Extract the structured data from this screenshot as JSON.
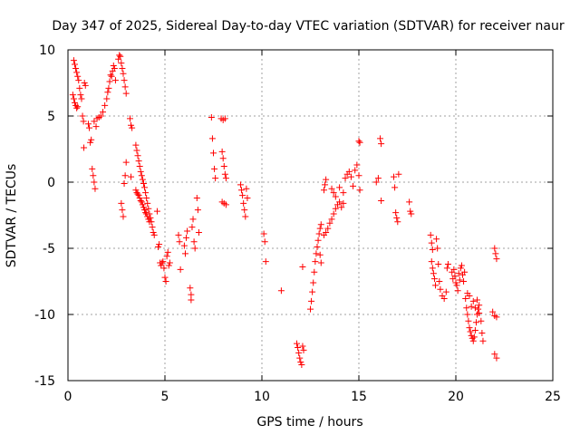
{
  "chart_data": {
    "type": "scatter",
    "title": "Day 347 of 2025, Sidereal Day-to-day VTEC variation (SDTVAR) for receiver naur",
    "xlabel": "GPS time / hours",
    "ylabel": "SDTVAR / TECUs",
    "xlim": [
      0,
      25
    ],
    "ylim": [
      -15,
      10
    ],
    "xticks": [
      "0",
      "5",
      "10",
      "15",
      "20",
      "25"
    ],
    "yticks": [
      "10",
      "5",
      "0",
      "-5",
      "-10",
      "-15"
    ],
    "xtick_values": [
      0,
      5,
      10,
      15,
      20,
      25
    ],
    "ytick_values": [
      10,
      5,
      0,
      -5,
      -10,
      -15
    ],
    "grid": true,
    "marker": "+",
    "color": "#ff0000",
    "series": [
      {
        "name": "SDTVAR",
        "points": [
          [
            0.3,
            9.2
          ],
          [
            0.35,
            8.9
          ],
          [
            0.4,
            8.6
          ],
          [
            0.45,
            8.3
          ],
          [
            0.5,
            8.0
          ],
          [
            0.55,
            7.7
          ],
          [
            0.25,
            6.6
          ],
          [
            0.3,
            6.3
          ],
          [
            0.35,
            6.0
          ],
          [
            0.4,
            5.8
          ],
          [
            0.45,
            5.6
          ],
          [
            0.5,
            5.7
          ],
          [
            0.6,
            7.1
          ],
          [
            0.65,
            6.6
          ],
          [
            0.7,
            6.3
          ],
          [
            0.75,
            5.0
          ],
          [
            0.8,
            4.6
          ],
          [
            0.82,
            2.6
          ],
          [
            0.85,
            7.5
          ],
          [
            0.9,
            7.3
          ],
          [
            1.05,
            4.4
          ],
          [
            1.1,
            4.1
          ],
          [
            1.15,
            3.0
          ],
          [
            1.2,
            3.2
          ],
          [
            1.25,
            1.0
          ],
          [
            1.3,
            0.5
          ],
          [
            1.35,
            0.0
          ],
          [
            1.4,
            -0.5
          ],
          [
            1.35,
            4.6
          ],
          [
            1.45,
            4.2
          ],
          [
            1.5,
            4.8
          ],
          [
            1.6,
            4.9
          ],
          [
            1.7,
            5.0
          ],
          [
            1.8,
            5.3
          ],
          [
            1.9,
            5.8
          ],
          [
            2.0,
            6.3
          ],
          [
            2.05,
            6.8
          ],
          [
            2.1,
            7.1
          ],
          [
            2.15,
            7.6
          ],
          [
            2.2,
            8.1
          ],
          [
            2.25,
            8.0
          ],
          [
            2.3,
            8.4
          ],
          [
            2.35,
            8.8
          ],
          [
            2.4,
            8.6
          ],
          [
            2.45,
            7.7
          ],
          [
            2.6,
            9.3
          ],
          [
            2.65,
            9.6
          ],
          [
            2.7,
            9.5
          ],
          [
            2.75,
            9.0
          ],
          [
            2.8,
            8.6
          ],
          [
            2.85,
            8.2
          ],
          [
            2.9,
            7.7
          ],
          [
            2.95,
            7.2
          ],
          [
            3.0,
            6.7
          ],
          [
            2.75,
            -1.6
          ],
          [
            2.8,
            -2.1
          ],
          [
            2.85,
            -2.6
          ],
          [
            2.9,
            -0.1
          ],
          [
            2.95,
            0.5
          ],
          [
            3.0,
            1.5
          ],
          [
            3.2,
            4.8
          ],
          [
            3.25,
            4.3
          ],
          [
            3.3,
            4.1
          ],
          [
            3.25,
            0.4
          ],
          [
            3.5,
            2.8
          ],
          [
            3.55,
            2.4
          ],
          [
            3.6,
            2.0
          ],
          [
            3.65,
            1.6
          ],
          [
            3.7,
            1.2
          ],
          [
            3.75,
            0.8
          ],
          [
            3.8,
            0.5
          ],
          [
            3.85,
            0.2
          ],
          [
            3.9,
            -0.1
          ],
          [
            3.95,
            -0.4
          ],
          [
            4.0,
            -0.8
          ],
          [
            4.05,
            -1.2
          ],
          [
            4.1,
            -1.6
          ],
          [
            4.15,
            -2.0
          ],
          [
            4.2,
            -2.4
          ],
          [
            4.25,
            -2.7
          ],
          [
            4.3,
            -3.0
          ],
          [
            4.35,
            -3.4
          ],
          [
            4.4,
            -3.8
          ],
          [
            4.45,
            -4.0
          ],
          [
            3.5,
            -0.6
          ],
          [
            3.55,
            -0.8
          ],
          [
            3.6,
            -0.9
          ],
          [
            3.65,
            -1.0
          ],
          [
            3.7,
            -1.2
          ],
          [
            3.75,
            -1.4
          ],
          [
            3.8,
            -1.5
          ],
          [
            3.85,
            -1.7
          ],
          [
            3.9,
            -1.9
          ],
          [
            3.95,
            -2.1
          ],
          [
            4.0,
            -2.3
          ],
          [
            4.05,
            -2.4
          ],
          [
            4.1,
            -2.6
          ],
          [
            4.15,
            -2.8
          ],
          [
            4.2,
            -3.0
          ],
          [
            4.6,
            -2.2
          ],
          [
            4.65,
            -4.9
          ],
          [
            4.7,
            -4.7
          ],
          [
            4.75,
            -6.1
          ],
          [
            4.8,
            -6.3
          ],
          [
            4.85,
            -6.1
          ],
          [
            4.9,
            -6.0
          ],
          [
            4.95,
            -6.5
          ],
          [
            5.0,
            -7.2
          ],
          [
            5.05,
            -7.5
          ],
          [
            5.1,
            -5.6
          ],
          [
            5.15,
            -5.3
          ],
          [
            5.2,
            -6.3
          ],
          [
            5.25,
            -6.1
          ],
          [
            5.7,
            -4.0
          ],
          [
            5.75,
            -4.5
          ],
          [
            5.8,
            -6.6
          ],
          [
            6.0,
            -4.8
          ],
          [
            6.05,
            -5.4
          ],
          [
            6.1,
            -4.2
          ],
          [
            6.15,
            -3.7
          ],
          [
            6.3,
            -8.0
          ],
          [
            6.35,
            -8.5
          ],
          [
            6.35,
            -8.9
          ],
          [
            6.4,
            -3.4
          ],
          [
            6.45,
            -2.8
          ],
          [
            6.5,
            -4.5
          ],
          [
            6.55,
            -5.0
          ],
          [
            6.65,
            -1.2
          ],
          [
            6.7,
            -2.1
          ],
          [
            6.75,
            -3.8
          ],
          [
            7.4,
            4.9
          ],
          [
            7.45,
            3.3
          ],
          [
            7.5,
            2.2
          ],
          [
            7.55,
            1.0
          ],
          [
            7.6,
            0.3
          ],
          [
            7.9,
            4.8
          ],
          [
            8.0,
            4.7
          ],
          [
            8.1,
            4.8
          ],
          [
            7.95,
            2.3
          ],
          [
            8.0,
            1.8
          ],
          [
            8.05,
            1.2
          ],
          [
            8.1,
            0.6
          ],
          [
            8.15,
            0.3
          ],
          [
            7.95,
            -1.5
          ],
          [
            8.05,
            -1.6
          ],
          [
            8.15,
            -1.7
          ],
          [
            8.9,
            -0.2
          ],
          [
            8.95,
            -0.6
          ],
          [
            9.0,
            -1.0
          ],
          [
            9.05,
            -1.6
          ],
          [
            9.1,
            -2.1
          ],
          [
            9.15,
            -2.6
          ],
          [
            9.2,
            -0.5
          ],
          [
            9.25,
            -1.2
          ],
          [
            10.1,
            -3.9
          ],
          [
            10.15,
            -4.5
          ],
          [
            10.2,
            -6.0
          ],
          [
            11.0,
            -8.2
          ],
          [
            11.8,
            -12.2
          ],
          [
            11.85,
            -12.5
          ],
          [
            11.9,
            -12.9
          ],
          [
            11.95,
            -13.3
          ],
          [
            12.0,
            -13.6
          ],
          [
            12.05,
            -13.8
          ],
          [
            12.1,
            -12.4
          ],
          [
            12.15,
            -12.7
          ],
          [
            12.1,
            -6.4
          ],
          [
            12.5,
            -9.6
          ],
          [
            12.55,
            -9.0
          ],
          [
            12.6,
            -8.3
          ],
          [
            12.65,
            -7.6
          ],
          [
            12.7,
            -6.8
          ],
          [
            12.75,
            -6.0
          ],
          [
            12.8,
            -5.4
          ],
          [
            12.85,
            -4.9
          ],
          [
            12.9,
            -4.4
          ],
          [
            12.95,
            -3.9
          ],
          [
            13.0,
            -3.5
          ],
          [
            13.05,
            -3.2
          ],
          [
            13.0,
            -5.5
          ],
          [
            13.05,
            -6.1
          ],
          [
            13.2,
            -4.0
          ],
          [
            13.3,
            -3.8
          ],
          [
            13.4,
            -3.5
          ],
          [
            13.5,
            -3.1
          ],
          [
            13.6,
            -2.8
          ],
          [
            13.7,
            -2.4
          ],
          [
            13.8,
            -2.0
          ],
          [
            13.9,
            -1.7
          ],
          [
            14.0,
            -1.5
          ],
          [
            14.1,
            -1.9
          ],
          [
            14.2,
            -1.6
          ],
          [
            13.2,
            -0.6
          ],
          [
            13.25,
            -0.2
          ],
          [
            13.3,
            0.2
          ],
          [
            13.6,
            -0.5
          ],
          [
            13.7,
            -0.8
          ],
          [
            13.8,
            -1.1
          ],
          [
            14.0,
            -0.4
          ],
          [
            14.2,
            -0.8
          ],
          [
            14.3,
            0.3
          ],
          [
            14.4,
            0.6
          ],
          [
            14.5,
            0.8
          ],
          [
            14.6,
            0.4
          ],
          [
            14.7,
            -0.3
          ],
          [
            14.8,
            0.9
          ],
          [
            14.9,
            1.3
          ],
          [
            15.0,
            0.5
          ],
          [
            15.05,
            -0.6
          ],
          [
            15.0,
            3.1
          ],
          [
            15.05,
            3.0
          ],
          [
            15.9,
            0.0
          ],
          [
            16.0,
            0.3
          ],
          [
            16.1,
            3.3
          ],
          [
            16.15,
            2.9
          ],
          [
            16.15,
            -1.4
          ],
          [
            16.8,
            0.4
          ],
          [
            16.85,
            -0.4
          ],
          [
            16.9,
            -2.3
          ],
          [
            16.95,
            -2.7
          ],
          [
            17.0,
            -3.0
          ],
          [
            17.05,
            0.6
          ],
          [
            17.6,
            -1.5
          ],
          [
            17.65,
            -2.2
          ],
          [
            17.7,
            -2.4
          ],
          [
            18.7,
            -4.0
          ],
          [
            18.75,
            -4.6
          ],
          [
            18.8,
            -5.1
          ],
          [
            18.75,
            -6.0
          ],
          [
            18.8,
            -6.5
          ],
          [
            18.85,
            -6.9
          ],
          [
            18.9,
            -7.3
          ],
          [
            18.95,
            -7.8
          ],
          [
            19.0,
            -4.3
          ],
          [
            19.05,
            -5.0
          ],
          [
            19.1,
            -6.2
          ],
          [
            19.15,
            -7.5
          ],
          [
            19.2,
            -8.1
          ],
          [
            19.3,
            -8.6
          ],
          [
            19.4,
            -8.8
          ],
          [
            19.5,
            -8.3
          ],
          [
            19.55,
            -6.5
          ],
          [
            19.6,
            -6.2
          ],
          [
            19.8,
            -6.8
          ],
          [
            19.85,
            -7.3
          ],
          [
            19.9,
            -6.6
          ],
          [
            19.95,
            -7.1
          ],
          [
            20.0,
            -7.6
          ],
          [
            20.05,
            -7.8
          ],
          [
            20.1,
            -8.2
          ],
          [
            20.15,
            -6.9
          ],
          [
            20.2,
            -7.4
          ],
          [
            20.25,
            -6.5
          ],
          [
            20.3,
            -6.3
          ],
          [
            20.35,
            -7.0
          ],
          [
            20.4,
            -7.5
          ],
          [
            20.45,
            -6.8
          ],
          [
            20.5,
            -8.8
          ],
          [
            20.55,
            -9.5
          ],
          [
            20.6,
            -10.0
          ],
          [
            20.65,
            -10.5
          ],
          [
            20.7,
            -11.0
          ],
          [
            20.75,
            -11.3
          ],
          [
            20.8,
            -11.6
          ],
          [
            20.85,
            -11.8
          ],
          [
            20.9,
            -12.0
          ],
          [
            20.95,
            -11.7
          ],
          [
            21.0,
            -11.2
          ],
          [
            21.05,
            -10.6
          ],
          [
            21.1,
            -10.0
          ],
          [
            21.15,
            -9.6
          ],
          [
            21.2,
            -9.3
          ],
          [
            20.6,
            -8.4
          ],
          [
            20.7,
            -8.6
          ],
          [
            20.8,
            -9.4
          ],
          [
            20.9,
            -9.0
          ],
          [
            21.0,
            -9.5
          ],
          [
            21.1,
            -8.9
          ],
          [
            21.2,
            -9.9
          ],
          [
            21.3,
            -10.5
          ],
          [
            21.35,
            -11.4
          ],
          [
            21.4,
            -12.0
          ],
          [
            22.0,
            -5.0
          ],
          [
            22.05,
            -5.4
          ],
          [
            22.1,
            -5.8
          ],
          [
            21.9,
            -9.8
          ],
          [
            22.0,
            -10.1
          ],
          [
            22.1,
            -10.2
          ],
          [
            22.0,
            -13.0
          ],
          [
            22.1,
            -13.3
          ]
        ]
      }
    ]
  }
}
